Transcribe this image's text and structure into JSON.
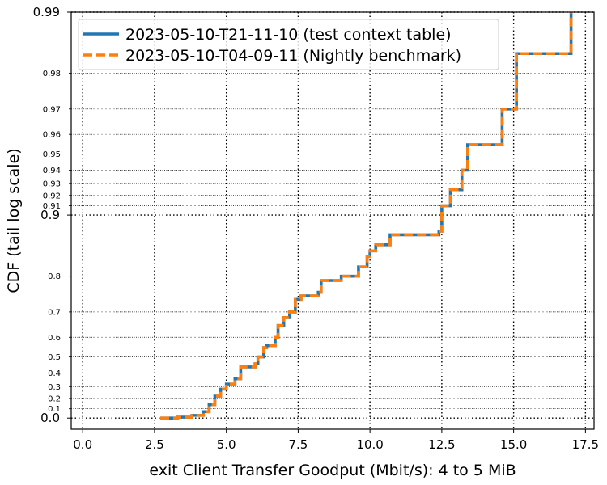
{
  "chart_data": {
    "type": "line",
    "xlabel": "exit Client Transfer Goodput (Mbit/s): 4 to 5 MiB",
    "ylabel": "CDF (tail log scale)",
    "xlim": [
      -0.4,
      17.8
    ],
    "x_ticks": [
      {
        "v": 0.0,
        "label": "0.0"
      },
      {
        "v": 2.5,
        "label": "2.5"
      },
      {
        "v": 5.0,
        "label": "5.0"
      },
      {
        "v": 7.5,
        "label": "7.5"
      },
      {
        "v": 10.0,
        "label": "10.0"
      },
      {
        "v": 12.5,
        "label": "12.5"
      },
      {
        "v": 15.0,
        "label": "15.0"
      },
      {
        "v": 17.5,
        "label": "17.5"
      }
    ],
    "y_scale": "tail log",
    "y_major_ticks": [
      {
        "v": 0.0,
        "label": "0.0"
      },
      {
        "v": 0.9,
        "label": "0.9"
      },
      {
        "v": 0.99,
        "label": "0.99"
      }
    ],
    "y_minor_ticks": [
      {
        "v": 0.1,
        "label": "0.1"
      },
      {
        "v": 0.2,
        "label": "0.2"
      },
      {
        "v": 0.3,
        "label": "0.3"
      },
      {
        "v": 0.4,
        "label": "0.4"
      },
      {
        "v": 0.5,
        "label": "0.5"
      },
      {
        "v": 0.6,
        "label": "0.6"
      },
      {
        "v": 0.7,
        "label": "0.7"
      },
      {
        "v": 0.8,
        "label": "0.8"
      },
      {
        "v": 0.91,
        "label": "0.91"
      },
      {
        "v": 0.92,
        "label": "0.92"
      },
      {
        "v": 0.93,
        "label": "0.93"
      },
      {
        "v": 0.94,
        "label": "0.94"
      },
      {
        "v": 0.95,
        "label": "0.95"
      },
      {
        "v": 0.96,
        "label": "0.96"
      },
      {
        "v": 0.97,
        "label": "0.97"
      },
      {
        "v": 0.98,
        "label": "0.98"
      }
    ],
    "grid": true,
    "legend_position": "top-left",
    "series": [
      {
        "name": "2023-05-10-T21-11-10 (test context table)",
        "color": "#1f77b4",
        "style": "solid",
        "x": [
          2.7,
          3.3,
          3.8,
          4.2,
          4.4,
          4.6,
          4.8,
          5.0,
          5.3,
          5.5,
          6.0,
          6.1,
          6.3,
          6.4,
          6.7,
          6.8,
          7.0,
          7.2,
          7.4,
          7.6,
          7.9,
          8.2,
          8.3,
          8.6,
          9.0,
          9.6,
          9.9,
          10.0,
          10.2,
          10.7,
          11.0,
          12.4,
          12.5,
          12.7,
          12.8,
          13.0,
          13.2,
          13.4,
          14.5,
          14.6,
          15.0,
          15.1,
          15.8,
          16.9,
          17.0
        ],
        "y": [
          0.0,
          0.01,
          0.03,
          0.07,
          0.14,
          0.22,
          0.28,
          0.32,
          0.36,
          0.44,
          0.46,
          0.5,
          0.55,
          0.56,
          0.6,
          0.65,
          0.68,
          0.7,
          0.74,
          0.75,
          0.75,
          0.76,
          0.79,
          0.79,
          0.8,
          0.82,
          0.84,
          0.85,
          0.86,
          0.875,
          0.875,
          0.88,
          0.91,
          0.91,
          0.925,
          0.925,
          0.94,
          0.955,
          0.955,
          0.97,
          0.97,
          0.984,
          0.984,
          0.984,
          0.99
        ]
      },
      {
        "name": "2023-05-10-T04-09-11 (Nightly benchmark)",
        "color": "#ff7f0e",
        "style": "dashed",
        "x": [
          2.7,
          3.3,
          3.8,
          4.2,
          4.4,
          4.6,
          4.8,
          5.0,
          5.3,
          5.5,
          6.0,
          6.1,
          6.3,
          6.4,
          6.7,
          6.8,
          7.0,
          7.2,
          7.4,
          7.6,
          7.9,
          8.2,
          8.3,
          8.6,
          9.0,
          9.6,
          9.9,
          10.0,
          10.2,
          10.7,
          11.0,
          12.4,
          12.5,
          12.7,
          12.8,
          13.0,
          13.2,
          13.4,
          14.5,
          14.6,
          15.0,
          15.1,
          15.8,
          16.9,
          17.0
        ],
        "y": [
          0.0,
          0.01,
          0.03,
          0.07,
          0.14,
          0.22,
          0.28,
          0.32,
          0.36,
          0.44,
          0.46,
          0.5,
          0.55,
          0.56,
          0.6,
          0.65,
          0.68,
          0.7,
          0.74,
          0.75,
          0.75,
          0.76,
          0.79,
          0.79,
          0.8,
          0.82,
          0.84,
          0.85,
          0.86,
          0.875,
          0.875,
          0.88,
          0.91,
          0.91,
          0.925,
          0.925,
          0.94,
          0.955,
          0.955,
          0.97,
          0.97,
          0.984,
          0.984,
          0.984,
          0.99
        ]
      }
    ]
  }
}
